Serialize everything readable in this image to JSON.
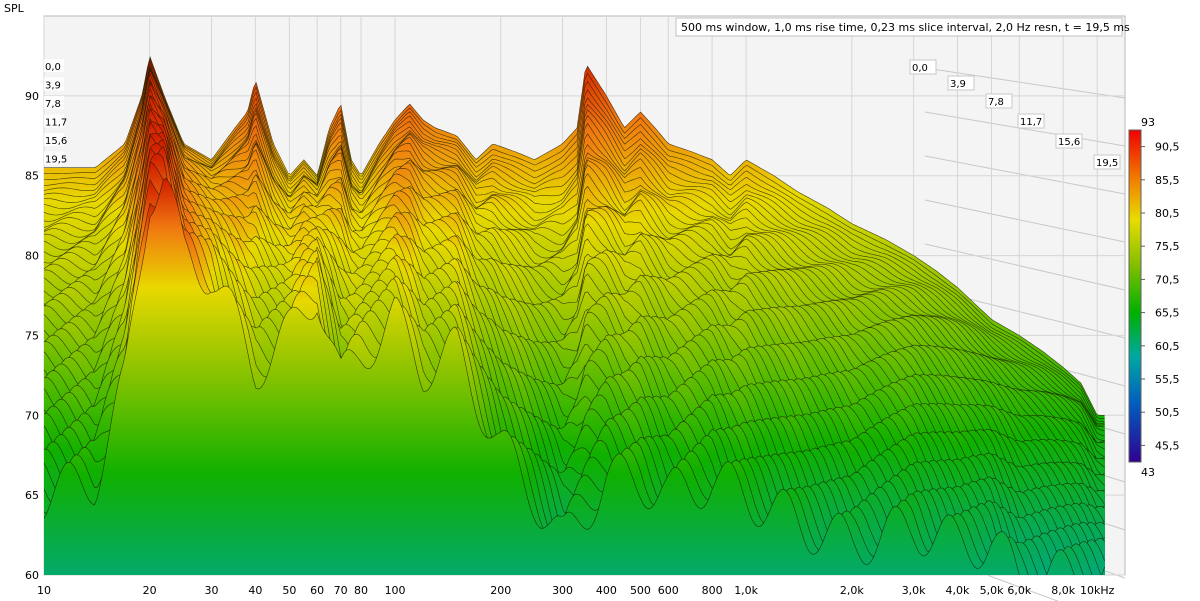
{
  "chart_data": {
    "type": "waterfall",
    "ylabel": "SPL",
    "xunit": "kHz",
    "header_text": "500 ms window, 1,0 ms rise time, 0,23 ms slice interval, 2,0 Hz resn, t = 19,5 ms",
    "xscale": "log",
    "xlim": [
      10,
      12000
    ],
    "ylim": [
      60,
      95
    ],
    "x_ticks": [
      {
        "v": 10,
        "t": "10"
      },
      {
        "v": 20,
        "t": "20"
      },
      {
        "v": 30,
        "t": "30"
      },
      {
        "v": 40,
        "t": "40"
      },
      {
        "v": 50,
        "t": "50"
      },
      {
        "v": 60,
        "t": "60"
      },
      {
        "v": 70,
        "t": "70"
      },
      {
        "v": 80,
        "t": "80"
      },
      {
        "v": 100,
        "t": "100"
      },
      {
        "v": 200,
        "t": "200"
      },
      {
        "v": 300,
        "t": "300"
      },
      {
        "v": 400,
        "t": "400"
      },
      {
        "v": 500,
        "t": "500"
      },
      {
        "v": 600,
        "t": "600"
      },
      {
        "v": 800,
        "t": "800"
      },
      {
        "v": 1000,
        "t": "1,0k"
      },
      {
        "v": 2000,
        "t": "2,0k"
      },
      {
        "v": 3000,
        "t": "3,0k"
      },
      {
        "v": 4000,
        "t": "4,0k"
      },
      {
        "v": 5000,
        "t": "5,0k"
      },
      {
        "v": 6000,
        "t": "6,0k"
      },
      {
        "v": 8000,
        "t": "8,0k"
      },
      {
        "v": 10000,
        "t": "10kHz"
      }
    ],
    "y_ticks": [
      {
        "v": 60,
        "t": "60"
      },
      {
        "v": 65,
        "t": "65"
      },
      {
        "v": 70,
        "t": "70"
      },
      {
        "v": 75,
        "t": "75"
      },
      {
        "v": 80,
        "t": "80"
      },
      {
        "v": 85,
        "t": "85"
      },
      {
        "v": 90,
        "t": "90"
      }
    ],
    "time_slices_ms": [
      "0,0",
      "3,9",
      "7,8",
      "11,7",
      "15,6",
      "19,5"
    ],
    "colorbar": {
      "min": 43,
      "max": 93,
      "min_label": "43",
      "max_label": "93",
      "ticks": [
        "90,5",
        "85,5",
        "80,5",
        "75,5",
        "70,5",
        "65,5",
        "60,5",
        "55,5",
        "50,5",
        "45,5"
      ]
    },
    "series": [
      {
        "time_ms": 0,
        "x": [
          10,
          14,
          17,
          19,
          20,
          22,
          25,
          30,
          35,
          38,
          40,
          45,
          50,
          55,
          60,
          65,
          70,
          75,
          80,
          90,
          100,
          110,
          120,
          130,
          150,
          170,
          190,
          220,
          250,
          300,
          330,
          350,
          400,
          450,
          500,
          550,
          600,
          700,
          800,
          900,
          1000,
          1200,
          1400,
          1700,
          2000,
          2500,
          3000,
          3500,
          4000,
          5000,
          6000,
          7000,
          8000,
          9000,
          10000
        ],
        "y": [
          85.5,
          85.5,
          87,
          90,
          92.5,
          90,
          87,
          86,
          88,
          89,
          91,
          87,
          85,
          86,
          85,
          88,
          89.5,
          86,
          85,
          87,
          88.5,
          89.5,
          88.5,
          88,
          87.5,
          86,
          87,
          86.5,
          86,
          87,
          88,
          92,
          90,
          88,
          89,
          88,
          87,
          86.5,
          86,
          85,
          86,
          85,
          84,
          83,
          82,
          81,
          80,
          79,
          78,
          76,
          75,
          74,
          73,
          72,
          70
        ]
      },
      {
        "time_ms": 19.5,
        "x": [
          10,
          14,
          17,
          20,
          22,
          25,
          30,
          40,
          50,
          60,
          70,
          80,
          100,
          120,
          150,
          200,
          250,
          300,
          400,
          500,
          600,
          800,
          1000,
          1500,
          2000,
          3000,
          4000,
          5000,
          6000,
          8000,
          10000
        ],
        "y": [
          65,
          66,
          72,
          84,
          85,
          80,
          79,
          73,
          75,
          78,
          72,
          74,
          76,
          73,
          74,
          68,
          65,
          62,
          66,
          66,
          65,
          66,
          65,
          63,
          62,
          63,
          62,
          62,
          60,
          60,
          60
        ]
      }
    ]
  }
}
